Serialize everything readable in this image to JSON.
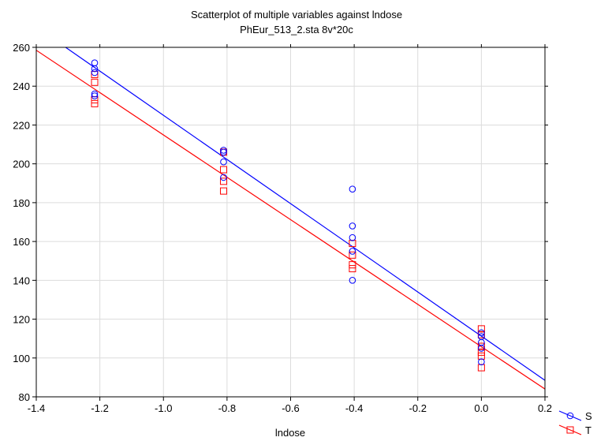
{
  "chart_data": {
    "type": "scatter",
    "title": "Scatterplot of multiple variables against lndose",
    "subtitle": "PhEur_513_2.sta 8v*20c",
    "xlabel": "lndose",
    "ylabel": "",
    "xlim": [
      -1.4,
      0.2
    ],
    "ylim": [
      80,
      260
    ],
    "x_ticks": [
      "-1.4",
      "-1.2",
      "-1.0",
      "-0.8",
      "-0.6",
      "-0.4",
      "-0.2",
      "0.0",
      "0.2"
    ],
    "y_ticks": [
      "80",
      "100",
      "120",
      "140",
      "160",
      "180",
      "200",
      "220",
      "240",
      "260"
    ],
    "grid": true,
    "legend_position": "bottom-right",
    "series": [
      {
        "name": "S",
        "color": "#0000ff",
        "marker": "circle",
        "points": [
          [
            -1.2164,
            252
          ],
          [
            -1.2164,
            249
          ],
          [
            -1.2164,
            247
          ],
          [
            -1.2164,
            236
          ],
          [
            -1.2164,
            235
          ],
          [
            -0.8109,
            207
          ],
          [
            -0.8109,
            206
          ],
          [
            -0.8109,
            201
          ],
          [
            -0.8109,
            193
          ],
          [
            -0.4055,
            187
          ],
          [
            -0.4055,
            168
          ],
          [
            -0.4055,
            162
          ],
          [
            -0.4055,
            155
          ],
          [
            -0.4055,
            140
          ],
          [
            0.0,
            113
          ],
          [
            0.0,
            111
          ],
          [
            0.0,
            108
          ],
          [
            0.0,
            105
          ],
          [
            0.0,
            98
          ]
        ],
        "fit": [
          [
            -1.4,
            270.5
          ],
          [
            0.2,
            88.5
          ]
        ]
      },
      {
        "name": "T",
        "color": "#ff0000",
        "marker": "square",
        "points": [
          [
            -1.2164,
            246
          ],
          [
            -1.2164,
            242
          ],
          [
            -1.2164,
            233
          ],
          [
            -1.2164,
            231
          ],
          [
            -0.8109,
            206
          ],
          [
            -0.8109,
            197
          ],
          [
            -0.8109,
            191
          ],
          [
            -0.8109,
            186
          ],
          [
            -0.4055,
            159
          ],
          [
            -0.4055,
            153
          ],
          [
            -0.4055,
            148
          ],
          [
            -0.4055,
            146
          ],
          [
            0.0,
            115
          ],
          [
            0.0,
            112
          ],
          [
            0.0,
            106
          ],
          [
            0.0,
            103
          ],
          [
            0.0,
            101
          ],
          [
            0.0,
            95
          ]
        ],
        "fit": [
          [
            -1.4,
            258.5
          ],
          [
            0.2,
            84
          ]
        ]
      }
    ]
  }
}
